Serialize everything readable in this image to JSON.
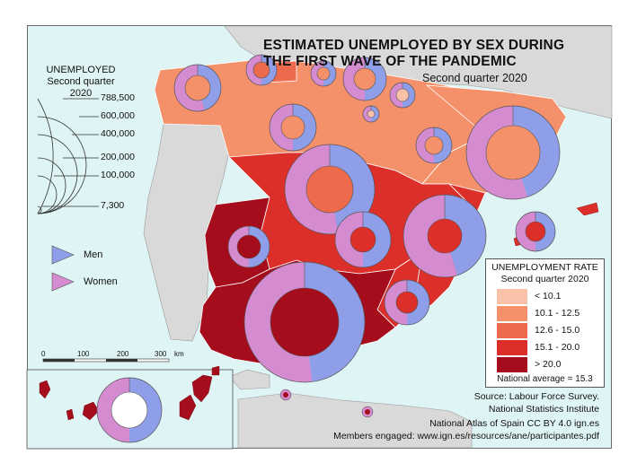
{
  "title": "ESTIMATED UNEMPLOYED BY SEX DURING THE FIRST WAVE OF THE PANDEMIC",
  "subtitle": "Second quarter 2020",
  "size_legend": {
    "heading": "UNEMPLOYED",
    "subheading": "Second quarter 2020",
    "values": [
      "788,500",
      "600,000",
      "400,000",
      "200,000",
      "100,000",
      "7,300"
    ]
  },
  "sex_legend": {
    "men": {
      "label": "Men",
      "color": "#8f9ee8"
    },
    "women": {
      "label": "Women",
      "color": "#d48bd0"
    }
  },
  "scale_bar": {
    "ticks": [
      "0",
      "100",
      "200",
      "300"
    ],
    "unit": "km"
  },
  "rate_legend": {
    "title": "UNEMPLOYMENT RATE",
    "subtitle": "Second quarter 2020",
    "classes": [
      {
        "label": "< 10.1",
        "color": "#f9c1a8"
      },
      {
        "label": "10.1 - 12.5",
        "color": "#f4916a"
      },
      {
        "label": "12.6 - 15.0",
        "color": "#ee6a4c"
      },
      {
        "label": "15.1 - 20.0",
        "color": "#dc2f2a"
      },
      {
        "label": "> 20.0",
        "color": "#a50d1c"
      }
    ],
    "national_average": "National average = 15.3"
  },
  "credits": {
    "source": "Source: Labour Force Survey.",
    "institute": "National Statistics Institute",
    "atlas": "National Atlas of Spain CC BY 4.0 ign.es",
    "members": "Members engaged: www.ign.es/resources/ane/participantes.pdf"
  },
  "colors": {
    "sea": "#dff4f4",
    "neighbor_land": "#d9d9d9",
    "men": "#8f9ee8",
    "women": "#d48bd0"
  }
}
